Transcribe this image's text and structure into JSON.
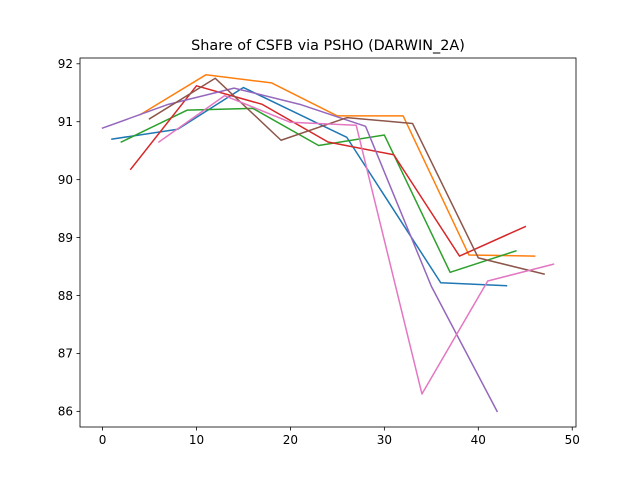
{
  "chart_data": {
    "type": "line",
    "title": "Share of CSFB via PSHO (DARWIN_2A)",
    "xlabel": "",
    "ylabel": "",
    "xlim": [
      -2.4,
      50.4
    ],
    "ylim": [
      85.73,
      92.1
    ],
    "xticks": [
      0,
      10,
      20,
      30,
      40,
      50
    ],
    "yticks": [
      86,
      87,
      88,
      89,
      90,
      91,
      92
    ],
    "grid": false,
    "legend": "none",
    "series": [
      {
        "color": "#1f77b4",
        "x": [
          1,
          8,
          15,
          26,
          36,
          43
        ],
        "y": [
          90.7,
          90.87,
          91.59,
          90.73,
          88.22,
          88.17
        ]
      },
      {
        "color": "#ff7f0e",
        "x": [
          4,
          11,
          18,
          25,
          32,
          39,
          46
        ],
        "y": [
          91.12,
          91.81,
          91.67,
          91.1,
          91.1,
          88.7,
          88.68
        ]
      },
      {
        "color": "#2ca02c",
        "x": [
          2,
          9,
          16,
          23,
          30,
          37,
          44
        ],
        "y": [
          90.65,
          91.2,
          91.23,
          90.59,
          90.77,
          88.4,
          88.77
        ]
      },
      {
        "color": "#d62728",
        "x": [
          3,
          10,
          17,
          24,
          31,
          38,
          45
        ],
        "y": [
          90.18,
          91.62,
          91.3,
          90.65,
          90.43,
          88.68,
          89.19
        ]
      },
      {
        "color": "#9467bd",
        "x": [
          0,
          7,
          14,
          21,
          28,
          35,
          42
        ],
        "y": [
          90.89,
          91.3,
          91.58,
          91.3,
          90.92,
          88.16,
          86.0
        ]
      },
      {
        "color": "#8c564b",
        "x": [
          5,
          12,
          19,
          26,
          33,
          40,
          47
        ],
        "y": [
          91.05,
          91.75,
          90.68,
          91.07,
          90.97,
          88.65,
          88.37
        ]
      },
      {
        "color": "#e377c2",
        "x": [
          6,
          13,
          20,
          27,
          34,
          41,
          48
        ],
        "y": [
          90.65,
          91.45,
          90.99,
          90.94,
          86.3,
          88.25,
          88.54
        ]
      }
    ]
  }
}
